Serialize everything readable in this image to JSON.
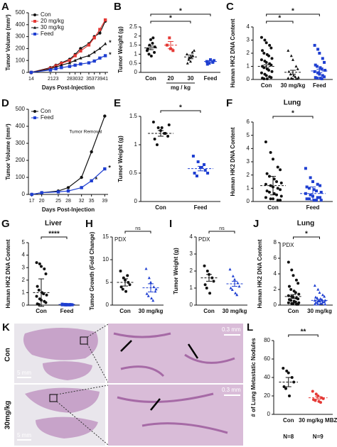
{
  "chart_data": [
    {
      "panel": "A",
      "type": "line",
      "ylabel": "Tumor Volume (mm³)",
      "xlabel": "Days Post-Injection",
      "x": [
        14,
        21,
        23,
        25,
        28,
        30,
        32,
        35,
        37,
        39,
        41
      ],
      "xlim": [
        13,
        42
      ],
      "xticks": [
        14,
        21,
        23,
        28,
        30,
        32,
        35,
        37,
        39,
        41
      ],
      "ylim": [
        0,
        500
      ],
      "yticks": [
        0,
        100,
        200,
        300,
        400,
        500
      ],
      "series": [
        {
          "name": "Con",
          "color": "#111111",
          "marker": "circle",
          "values": [
            0,
            40,
            60,
            80,
            110,
            150,
            200,
            240,
            300,
            330,
            430
          ]
        },
        {
          "name": "20 mg/kg",
          "color": "#e53935",
          "marker": "square",
          "values": [
            0,
            35,
            55,
            75,
            100,
            140,
            180,
            230,
            290,
            360,
            440
          ]
        },
        {
          "name": "30 mg/kg",
          "color": "#111111",
          "marker": "triangle",
          "values": [
            0,
            30,
            45,
            60,
            80,
            100,
            120,
            140,
            170,
            200,
            240
          ]
        },
        {
          "name": "Feed",
          "color": "#1f3fd1",
          "marker": "square",
          "values": [
            0,
            20,
            30,
            40,
            50,
            60,
            70,
            80,
            95,
            120,
            140
          ]
        }
      ],
      "annotations": [
        {
          "text": "*",
          "series": 2,
          "index": 10
        },
        {
          "text": "*",
          "series": 3,
          "index": 10
        }
      ]
    },
    {
      "panel": "B",
      "type": "strip",
      "ylabel": "Tumor Weight (g)",
      "xlabel": "mg / kg",
      "categories": [
        "Con",
        "20",
        "30",
        "Feed"
      ],
      "colors": [
        "#111111",
        "#e53935",
        "#111111",
        "#1f3fd1"
      ],
      "markers": [
        "circle",
        "square",
        "triangle",
        "square"
      ],
      "ylim": [
        0,
        2.5
      ],
      "yticks": [
        0,
        0.5,
        1,
        1.5,
        2,
        2.5
      ],
      "points": [
        [
          1.2,
          1.5,
          1.8,
          1.9,
          1.1,
          1.3,
          1.0,
          0.9,
          1.6,
          1.4,
          1.2
        ],
        [
          1.5,
          1.9,
          1.3,
          1.2
        ],
        [
          1.0,
          0.8,
          0.6,
          0.9,
          1.2,
          0.5,
          0.7,
          0.85,
          1.1
        ],
        [
          0.6,
          0.5,
          0.7,
          0.55,
          0.65,
          0.45
        ]
      ],
      "means": [
        1.35,
        1.5,
        0.85,
        0.6
      ],
      "errors": [
        0.1,
        0.2,
        0.1,
        0.05
      ],
      "significance": [
        {
          "label": "*",
          "from": 0,
          "to": 3
        },
        {
          "label": "*",
          "from": 0,
          "to": 2
        }
      ]
    },
    {
      "panel": "C",
      "type": "strip",
      "ylabel": "Human HK2 DNA Content",
      "categories": [
        "Con",
        "30 mg/kg",
        "Feed"
      ],
      "colors": [
        "#111111",
        "#111111",
        "#1f3fd1"
      ],
      "markers": [
        "circle",
        "triangle",
        "square"
      ],
      "ylim": [
        0,
        4
      ],
      "yticks": [
        0,
        1,
        2,
        3,
        4
      ],
      "points": [
        [
          3.2,
          3.0,
          2.8,
          2.6,
          2.4,
          2.2,
          2.0,
          1.9,
          1.8,
          1.6,
          1.5,
          1.4,
          1.3,
          1.2,
          1.1,
          1.0,
          0.9,
          0.8,
          0.7,
          0.6,
          0.5,
          0.4,
          0.3,
          0.2,
          0.15,
          0.1,
          0.05,
          0.05
        ],
        [
          2.2,
          1.8,
          1.5,
          1.0,
          0.8,
          0.6,
          0.4,
          0.3,
          0.2,
          0.15,
          0.1,
          0.1,
          0.05,
          0.05,
          0.05
        ],
        [
          2.6,
          2.3,
          2.0,
          1.6,
          1.3,
          1.1,
          1.0,
          0.9,
          0.8,
          0.7,
          0.6,
          0.5,
          0.4,
          0.3,
          0.2,
          0.15,
          0.1,
          0.1,
          0.05
        ]
      ],
      "means": [
        1.0,
        0.55,
        0.65
      ],
      "errors": [
        0.12,
        0.15,
        0.13
      ],
      "significance": [
        {
          "label": "*",
          "from": 0,
          "to": 2
        },
        {
          "label": "*",
          "from": 0,
          "to": 1
        }
      ]
    },
    {
      "panel": "D",
      "type": "line",
      "ylabel": "Tumor Volume (mm³)",
      "xlabel": "Days Post-Injection",
      "x": [
        17,
        20,
        25,
        28,
        32,
        35,
        39
      ],
      "xlim": [
        16,
        40
      ],
      "xticks": [
        17,
        20,
        25,
        28,
        32,
        35,
        39
      ],
      "ylim": [
        0,
        500
      ],
      "yticks": [
        0,
        100,
        200,
        300,
        400,
        500
      ],
      "series": [
        {
          "name": "Con",
          "color": "#111111",
          "marker": "circle",
          "values": [
            0,
            10,
            20,
            40,
            100,
            250,
            460
          ]
        },
        {
          "name": "Feed",
          "color": "#1f3fd1",
          "marker": "square",
          "values": [
            0,
            10,
            15,
            20,
            40,
            80,
            150
          ]
        }
      ],
      "annotations": [
        {
          "text": "Tumor Removal",
          "series": 0,
          "index": 6
        },
        {
          "text": "*",
          "series": 1,
          "index": 5
        },
        {
          "text": "*",
          "series": 1,
          "index": 6
        }
      ]
    },
    {
      "panel": "E",
      "type": "strip",
      "ylabel": "Tumor Weight (g)",
      "categories": [
        "Con",
        "Feed"
      ],
      "colors": [
        "#111111",
        "#1f3fd1"
      ],
      "markers": [
        "circle",
        "square"
      ],
      "ylim": [
        0,
        1.5
      ],
      "yticks": [
        0,
        0.5,
        1,
        1.5
      ],
      "points": [
        [
          1.4,
          1.3,
          1.25,
          1.2,
          1.15,
          1.1,
          1.0,
          1.3,
          1.2,
          1.35
        ],
        [
          0.8,
          0.7,
          0.6,
          0.55,
          0.5,
          0.5,
          0.45,
          0.6,
          0.65
        ]
      ],
      "means": [
        1.2,
        0.58
      ],
      "errors": [
        0.05,
        0.04
      ],
      "significance": [
        {
          "label": "*",
          "from": 0,
          "to": 1
        }
      ]
    },
    {
      "panel": "F",
      "type": "strip",
      "title": "Lung",
      "ylabel": "Human HK2 DNA Content",
      "categories": [
        "Con",
        "Feed"
      ],
      "colors": [
        "#111111",
        "#1f3fd1"
      ],
      "markers": [
        "circle",
        "square"
      ],
      "ylim": [
        0,
        6
      ],
      "yticks": [
        0,
        1,
        2,
        3,
        4,
        5,
        6
      ],
      "points": [
        [
          4.5,
          3.7,
          3.2,
          2.6,
          2.4,
          2.1,
          1.9,
          1.7,
          1.5,
          1.4,
          1.3,
          1.2,
          1.1,
          1.0,
          0.9,
          0.8,
          0.7,
          0.6,
          0.5,
          0.4,
          0.3,
          0.2,
          0.2,
          0.1,
          0.1
        ],
        [
          2.5,
          1.8,
          1.5,
          1.3,
          1.2,
          1.1,
          1.0,
          0.9,
          0.8,
          0.7,
          0.6,
          0.5,
          0.4,
          0.3,
          0.3,
          0.2,
          0.2,
          0.1,
          0.1,
          0.1
        ]
      ],
      "means": [
        1.2,
        0.6
      ],
      "errors": [
        0.7,
        0.5
      ],
      "significance": [
        {
          "label": "*",
          "from": 0,
          "to": 1
        }
      ]
    },
    {
      "panel": "G",
      "type": "strip",
      "title": "Liver",
      "ylabel": "Human HK2 DNA Content",
      "categories": [
        "Con",
        "Feed"
      ],
      "colors": [
        "#111111",
        "#1f3fd1"
      ],
      "markers": [
        "circle",
        "square"
      ],
      "ylim": [
        0,
        5
      ],
      "yticks": [
        0,
        1,
        2,
        3,
        4,
        5
      ],
      "points": [
        [
          3.4,
          3.3,
          3.1,
          2.9,
          2.5,
          1.5,
          1.2,
          1.0,
          0.9,
          0.8,
          0.7,
          0.5,
          0.4,
          0.3,
          0.2,
          0.1,
          0.05
        ],
        [
          0.08,
          0.06,
          0.05,
          0.05,
          0.04,
          0.04,
          0.03,
          0.03,
          0.02,
          0.02,
          0.02,
          0.01,
          0.01,
          0.01
        ]
      ],
      "means": [
        1.0,
        0.05
      ],
      "errors": [
        1.1,
        0.03
      ],
      "significance": [
        {
          "label": "****",
          "from": 0,
          "to": 1
        }
      ]
    },
    {
      "panel": "H",
      "type": "strip",
      "tag": "PDX",
      "ylabel": "Tumor Growth (Fold Change)",
      "categories": [
        "Con",
        "30 mg/kg"
      ],
      "colors": [
        "#111111",
        "#1f3fd1"
      ],
      "markers": [
        "circle",
        "triangle"
      ],
      "ylim": [
        0,
        15
      ],
      "yticks": [
        0,
        5,
        10,
        15
      ],
      "points": [
        [
          7.5,
          6,
          5.5,
          5,
          4.5,
          4,
          3.5,
          3,
          6.5
        ],
        [
          8,
          6,
          5,
          4,
          3,
          2.5,
          2,
          1.5,
          1,
          3.5
        ]
      ],
      "means": [
        5.0,
        3.8
      ],
      "errors": [
        0.8,
        0.9
      ],
      "significance": [
        {
          "label": "ns",
          "from": 0,
          "to": 1
        }
      ]
    },
    {
      "panel": "I",
      "type": "strip",
      "tag": "PDX",
      "ylabel": "Tumor Weight (g)",
      "categories": [
        "Con",
        "30 mg/kg"
      ],
      "colors": [
        "#111111",
        "#1f3fd1"
      ],
      "markers": [
        "circle",
        "triangle"
      ],
      "ylim": [
        0,
        4
      ],
      "yticks": [
        0,
        1,
        2,
        3,
        4
      ],
      "points": [
        [
          2.3,
          2.0,
          1.8,
          1.6,
          1.4,
          1.2,
          1.0,
          0.7
        ],
        [
          2.1,
          1.7,
          1.5,
          1.3,
          1.1,
          1.0,
          0.9,
          0.7,
          0.6
        ]
      ],
      "means": [
        1.6,
        1.25
      ],
      "errors": [
        0.2,
        0.15
      ],
      "significance": [
        {
          "label": "ns",
          "from": 0,
          "to": 1
        }
      ]
    },
    {
      "panel": "J",
      "type": "strip",
      "title": "Lung",
      "tag": "PDX",
      "ylabel": "Human HK2 DNA Content",
      "categories": [
        "Con",
        "30 mg/kg"
      ],
      "colors": [
        "#111111",
        "#1f3fd1"
      ],
      "markers": [
        "circle",
        "triangle"
      ],
      "ylim": [
        0,
        8
      ],
      "yticks": [
        0,
        2,
        4,
        6,
        8
      ],
      "points": [
        [
          5.5,
          4.5,
          3.8,
          3.2,
          2.8,
          2.4,
          2.0,
          1.8,
          1.6,
          1.4,
          1.2,
          1.1,
          1.0,
          0.9,
          0.8,
          0.7,
          0.6,
          0.5,
          0.4,
          0.3,
          0.3,
          0.2,
          0.2,
          0.1,
          0.1
        ],
        [
          2.5,
          2.0,
          1.6,
          1.3,
          1.1,
          1.0,
          0.9,
          0.8,
          0.7,
          0.6,
          0.6,
          0.5,
          0.5,
          0.4,
          0.4,
          0.3,
          0.3,
          0.2,
          0.2,
          0.1,
          0.1,
          0.1
        ]
      ],
      "means": [
        1.1,
        0.6
      ],
      "errors": [
        0.25,
        0.1
      ],
      "significance": [
        {
          "label": "*",
          "from": 0,
          "to": 1
        }
      ]
    },
    {
      "panel": "L",
      "type": "strip",
      "ylabel": "# of Lung Metastatic Nodules",
      "categories": [
        "Con",
        "30 mg/kg MBZ"
      ],
      "footnotes": [
        "N=8",
        "N=9"
      ],
      "colors": [
        "#111111",
        "#e53935"
      ],
      "markers": [
        "circle",
        "circle"
      ],
      "ylim": [
        0,
        80
      ],
      "yticks": [
        0,
        20,
        40,
        60,
        80
      ],
      "points": [
        [
          50,
          47,
          45,
          40,
          35,
          30,
          28,
          20
        ],
        [
          25,
          22,
          20,
          18,
          17,
          16,
          15,
          14,
          13
        ]
      ],
      "means": [
        35,
        18
      ],
      "errors": [
        5,
        1.5
      ],
      "significance": [
        {
          "label": "**",
          "from": 0,
          "to": 1
        }
      ]
    }
  ],
  "figure_k": {
    "panel": "K",
    "rows": [
      "Con",
      "30mg/kg"
    ],
    "scale_low": "5 mm",
    "scale_high": "0.3 mm"
  }
}
